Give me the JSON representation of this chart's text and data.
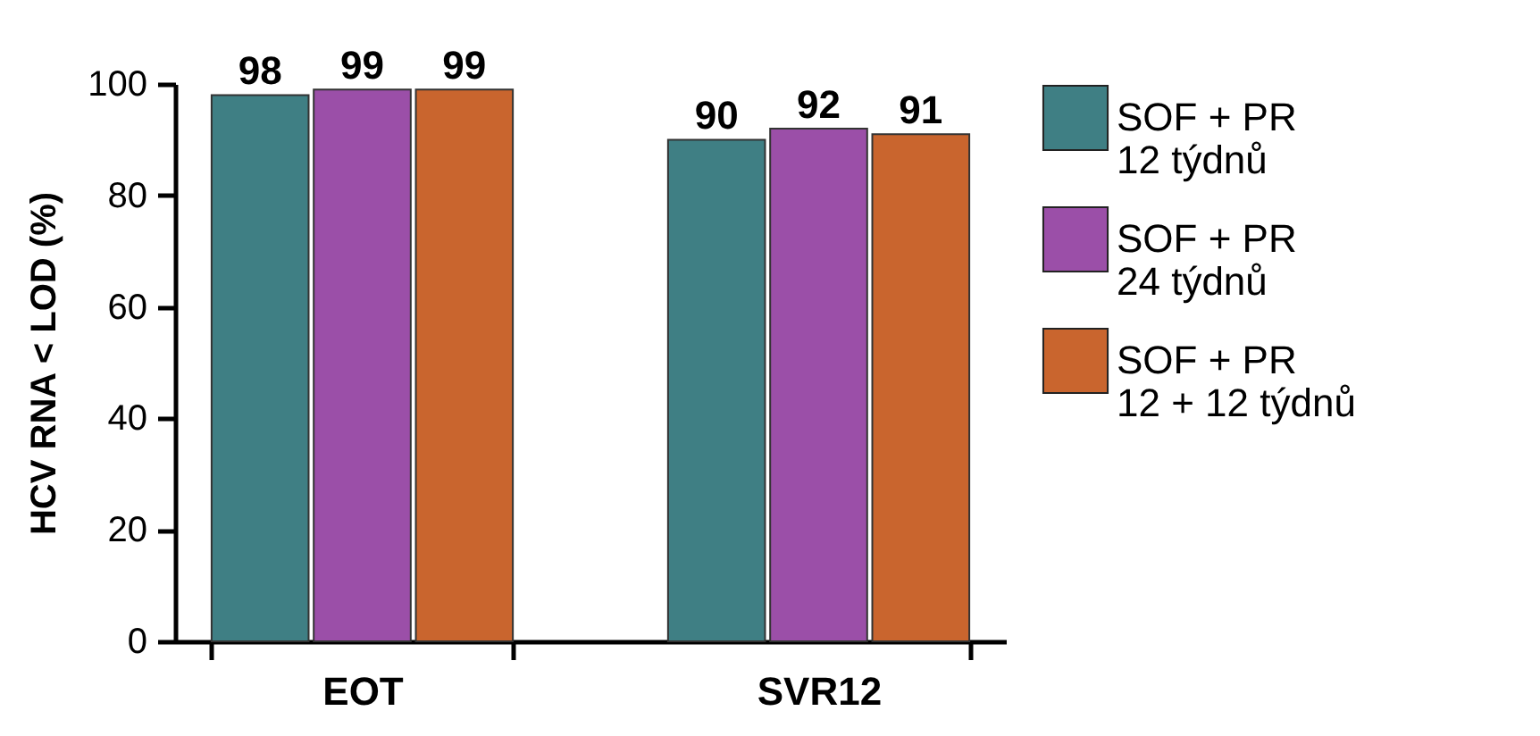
{
  "chart_data": {
    "type": "bar",
    "ylabel": "HCV RNA < LOD (%)",
    "categories": [
      "EOT",
      "SVR12"
    ],
    "series": [
      {
        "name": "SOF + PR\n12 týdnů",
        "color": "#3f7f84",
        "values": [
          98,
          90
        ]
      },
      {
        "name": "SOF + PR\n24 týdnů",
        "color": "#9b4fa8",
        "values": [
          99,
          92
        ]
      },
      {
        "name": "SOF + PR\n12 + 12 týdnů",
        "color": "#c9652e",
        "values": [
          99,
          91
        ]
      }
    ],
    "ylim": [
      0,
      100
    ],
    "yticks": [
      0,
      20,
      40,
      60,
      80,
      100
    ],
    "data_labels": true,
    "grid": false,
    "legend": "right"
  }
}
